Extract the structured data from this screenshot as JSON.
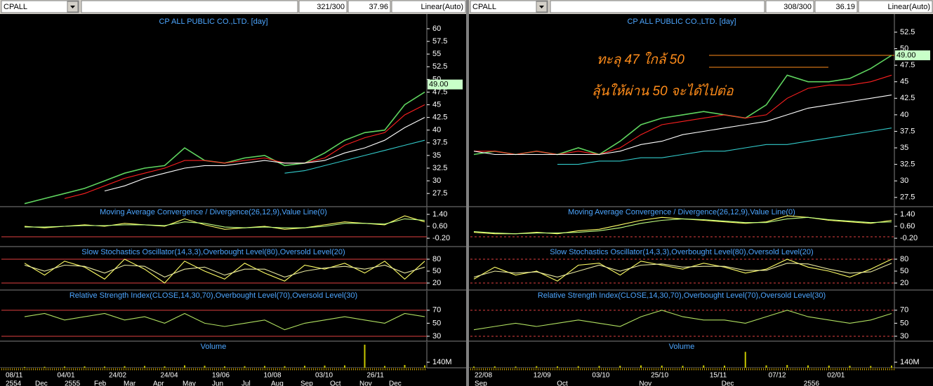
{
  "toolbars": [
    {
      "symbol": "CPALL",
      "count": "321/300",
      "value": "37.96",
      "scale": "Linear(Auto)"
    },
    {
      "symbol": "CPALL",
      "count": "308/300",
      "value": "36.19",
      "scale": "Linear(Auto)"
    }
  ],
  "date_axes": [
    {
      "top": [
        "08/11",
        "04/01",
        "24/02",
        "24/04",
        "19/06",
        "10/08",
        "03/10",
        "26/11"
      ],
      "bottom": [
        "2554",
        "Dec",
        "2555",
        "Feb",
        "Mar",
        "Apr",
        "May",
        "Jun",
        "Jul",
        "Aug",
        "Sep",
        "Oct",
        "Nov",
        "Dec"
      ]
    },
    {
      "top": [
        "22/08",
        "12/09",
        "03/10",
        "25/10",
        "15/11",
        "07/12",
        "02/01"
      ],
      "bottom": [
        "Sep",
        "Oct",
        "Nov",
        "Dec",
        "2556"
      ]
    }
  ],
  "annotations": [
    "ทะลุ 47 ใกล้ 50",
    "ลุ้นให้ผ่าน 50 จะได้ไปต่อ"
  ],
  "chart_data": [
    {
      "type": "line",
      "title": "CP ALL PUBLIC CO.,LTD. [day]",
      "ylim": [
        24.9,
        62.9
      ],
      "yticks": [
        27.5,
        30,
        32.5,
        35,
        37.5,
        40,
        42.5,
        45,
        47.5,
        50,
        52.5,
        55,
        57.5,
        60
      ],
      "price_marker": {
        "value": 49,
        "label": "49.00"
      },
      "series": [
        {
          "color": "#5fd45f",
          "values": [
            25.5,
            26.5,
            27.5,
            28.5,
            30,
            31.5,
            32.5,
            33,
            36.5,
            34,
            33.5,
            34.5,
            35,
            33,
            33.5,
            35.5,
            38,
            39.5,
            40,
            45,
            47.5
          ]
        },
        {
          "color": "#ff2020",
          "values": [
            null,
            null,
            26.5,
            27.5,
            29,
            30.5,
            31.5,
            32.5,
            34,
            34,
            33.5,
            34,
            34.5,
            33.5,
            33.5,
            34.5,
            37,
            38.5,
            39.5,
            43,
            45
          ]
        },
        {
          "color": "#ffffff",
          "values": [
            null,
            null,
            null,
            null,
            28,
            29,
            30.5,
            31.5,
            32.5,
            33,
            33,
            33.5,
            34,
            33.5,
            33.5,
            34,
            35.5,
            36.5,
            38,
            40.5,
            42.5
          ]
        },
        {
          "color": "#33cccc",
          "values": [
            null,
            null,
            null,
            null,
            null,
            null,
            null,
            null,
            null,
            null,
            null,
            null,
            null,
            31.5,
            32,
            33,
            34,
            35,
            36,
            37,
            38
          ]
        }
      ]
    },
    {
      "type": "line",
      "title": "Moving Average Convergence / Divergence(26,12,9),Value Line(0)",
      "ylim": [
        -0.76,
        1.87
      ],
      "yticks": [
        {
          "value": -0.2,
          "label": "-0.20"
        },
        {
          "value": 0.6,
          "label": "0.60"
        },
        {
          "value": 1.4,
          "label": "1.40"
        }
      ],
      "levels": [
        -0.1
      ],
      "series": [
        {
          "color": "#ffff66",
          "values": [
            0.6,
            0.5,
            0.6,
            0.7,
            0.6,
            0.8,
            0.7,
            0.6,
            1.1,
            0.7,
            0.4,
            0.5,
            0.6,
            0.4,
            0.5,
            0.7,
            0.9,
            0.8,
            0.7,
            1.3,
            0.9
          ]
        },
        {
          "color": "#c0ff80",
          "values": [
            0.55,
            0.55,
            0.6,
            0.65,
            0.65,
            0.7,
            0.7,
            0.65,
            0.9,
            0.8,
            0.55,
            0.5,
            0.55,
            0.5,
            0.5,
            0.6,
            0.8,
            0.8,
            0.75,
            1.1,
            1.0
          ]
        }
      ]
    },
    {
      "type": "line",
      "title": "Slow Stochastics Oscillator(14,3,3),Overbought Level(80),Oversold Level(20)",
      "ylim": [
        2.4,
        110
      ],
      "yticks": [
        20,
        50,
        80
      ],
      "levels": [
        20,
        80
      ],
      "series": [
        {
          "color": "#ffff66",
          "values": [
            70,
            40,
            75,
            60,
            30,
            80,
            55,
            20,
            75,
            50,
            30,
            70,
            45,
            25,
            65,
            55,
            70,
            45,
            75,
            30,
            75
          ]
        },
        {
          "color": "#e8e8a0",
          "values": [
            65,
            50,
            65,
            62,
            45,
            65,
            62,
            35,
            55,
            60,
            40,
            55,
            55,
            35,
            50,
            58,
            62,
            55,
            65,
            45,
            60
          ]
        }
      ]
    },
    {
      "type": "line",
      "title": "Relative Strength Index(CLOSE,14,30,70),Overbought Level(70),Oversold Level(30)",
      "ylim": [
        22.4,
        100
      ],
      "yticks": [
        30,
        50,
        70
      ],
      "levels": [
        30,
        70
      ],
      "series": [
        {
          "color": "#b0e060",
          "values": [
            60,
            65,
            55,
            60,
            65,
            55,
            60,
            50,
            65,
            50,
            45,
            50,
            55,
            40,
            50,
            55,
            60,
            55,
            50,
            65,
            60
          ]
        }
      ]
    },
    {
      "type": "bar",
      "title": "Volume",
      "ylim": [
        0,
        650
      ],
      "yticks": [
        {
          "value": 140,
          "label": "140M"
        }
      ],
      "color": "#c8c800",
      "values": [
        20,
        25,
        30,
        35,
        30,
        40,
        45,
        35,
        60,
        50,
        35,
        40,
        45,
        40,
        50,
        55,
        60,
        580,
        45,
        70,
        60
      ]
    },
    {
      "type": "line",
      "title": "CP ALL PUBLIC CO.,LTD. [day]",
      "ylim": [
        26.1,
        55.25
      ],
      "yticks": [
        27.5,
        30,
        32.5,
        35,
        37.5,
        40,
        42.5,
        45,
        47.5,
        50,
        52.5
      ],
      "price_marker": {
        "value": 49,
        "label": "49.00"
      },
      "series": [
        {
          "color": "#5fd45f",
          "values": [
            34,
            34.5,
            34,
            34.5,
            34,
            35,
            34,
            36,
            38.5,
            39.5,
            40,
            40.5,
            40,
            39.5,
            41.5,
            46,
            45,
            45,
            45.5,
            47,
            49
          ]
        },
        {
          "color": "#ff2020",
          "values": [
            34.5,
            34.5,
            34,
            34.5,
            34,
            34.5,
            34,
            35,
            37,
            38.5,
            39,
            39.5,
            40,
            39.5,
            40,
            42.5,
            44,
            44.5,
            44.5,
            45,
            46
          ]
        },
        {
          "color": "#ffffff",
          "values": [
            34.5,
            34,
            34,
            34,
            34,
            34,
            34,
            34.5,
            35.5,
            36,
            37,
            37.5,
            38,
            38.5,
            39,
            40,
            41,
            41.5,
            42,
            42.5,
            43
          ]
        },
        {
          "color": "#33cccc",
          "values": [
            null,
            null,
            null,
            null,
            32.5,
            32.5,
            33,
            33,
            33.5,
            33.5,
            34,
            34.5,
            34.5,
            35,
            35.5,
            35.5,
            36,
            36.5,
            37,
            37.5,
            38
          ]
        }
      ]
    },
    {
      "type": "line",
      "title": "Moving Average Convergence / Divergence(26,12,9),Value Line(0)",
      "ylim": [
        -0.76,
        1.87
      ],
      "yticks": [
        {
          "value": -0.2,
          "label": "-0.20"
        },
        {
          "value": 0.6,
          "label": "0.60"
        },
        {
          "value": 1.4,
          "label": "1.40"
        }
      ],
      "levels": [
        -0.1
      ],
      "series": [
        {
          "color": "#ffff66",
          "values": [
            0.2,
            0.1,
            0.1,
            0.2,
            0.1,
            0.3,
            0.4,
            0.7,
            1.0,
            1.2,
            1.1,
            1.0,
            0.9,
            0.8,
            0.9,
            1.3,
            1.2,
            1.0,
            0.9,
            0.8,
            1.0
          ]
        },
        {
          "color": "#c0ff80",
          "values": [
            0.25,
            0.15,
            0.1,
            0.15,
            0.15,
            0.2,
            0.3,
            0.5,
            0.8,
            1.0,
            1.1,
            1.05,
            0.95,
            0.85,
            0.85,
            1.1,
            1.2,
            1.05,
            0.95,
            0.85,
            0.9
          ]
        }
      ]
    },
    {
      "type": "line",
      "title": "Slow Stochastics Oscillator(14,3,3),Overbought Level(80),Oversold Level(20)",
      "ylim": [
        2.4,
        110
      ],
      "yticks": [
        20,
        50,
        80
      ],
      "levels": [
        20,
        80
      ],
      "series": [
        {
          "color": "#ffff66",
          "values": [
            30,
            60,
            40,
            50,
            25,
            65,
            70,
            40,
            75,
            65,
            55,
            70,
            60,
            45,
            55,
            80,
            60,
            50,
            35,
            55,
            80
          ]
        },
        {
          "color": "#e8e8a0",
          "values": [
            35,
            50,
            45,
            48,
            35,
            50,
            65,
            50,
            65,
            68,
            60,
            62,
            62,
            52,
            52,
            70,
            68,
            55,
            45,
            48,
            70
          ]
        }
      ]
    },
    {
      "type": "line",
      "title": "Relative Strength Index(CLOSE,14,30,70),Overbought Level(70),Oversold Level(30)",
      "ylim": [
        22.4,
        100
      ],
      "yticks": [
        30,
        50,
        70
      ],
      "levels": [
        30,
        70
      ],
      "series": [
        {
          "color": "#b0e060",
          "values": [
            40,
            45,
            50,
            45,
            50,
            55,
            50,
            45,
            60,
            70,
            60,
            55,
            55,
            50,
            60,
            70,
            60,
            55,
            50,
            55,
            65
          ]
        }
      ]
    },
    {
      "type": "bar",
      "title": "Volume",
      "ylim": [
        0,
        650
      ],
      "yticks": [
        {
          "value": 140,
          "label": "140M"
        }
      ],
      "color": "#c8c800",
      "values": [
        30,
        35,
        30,
        40,
        35,
        40,
        45,
        50,
        60,
        55,
        50,
        60,
        55,
        400,
        60,
        70,
        60,
        55,
        50,
        45,
        55
      ]
    }
  ]
}
